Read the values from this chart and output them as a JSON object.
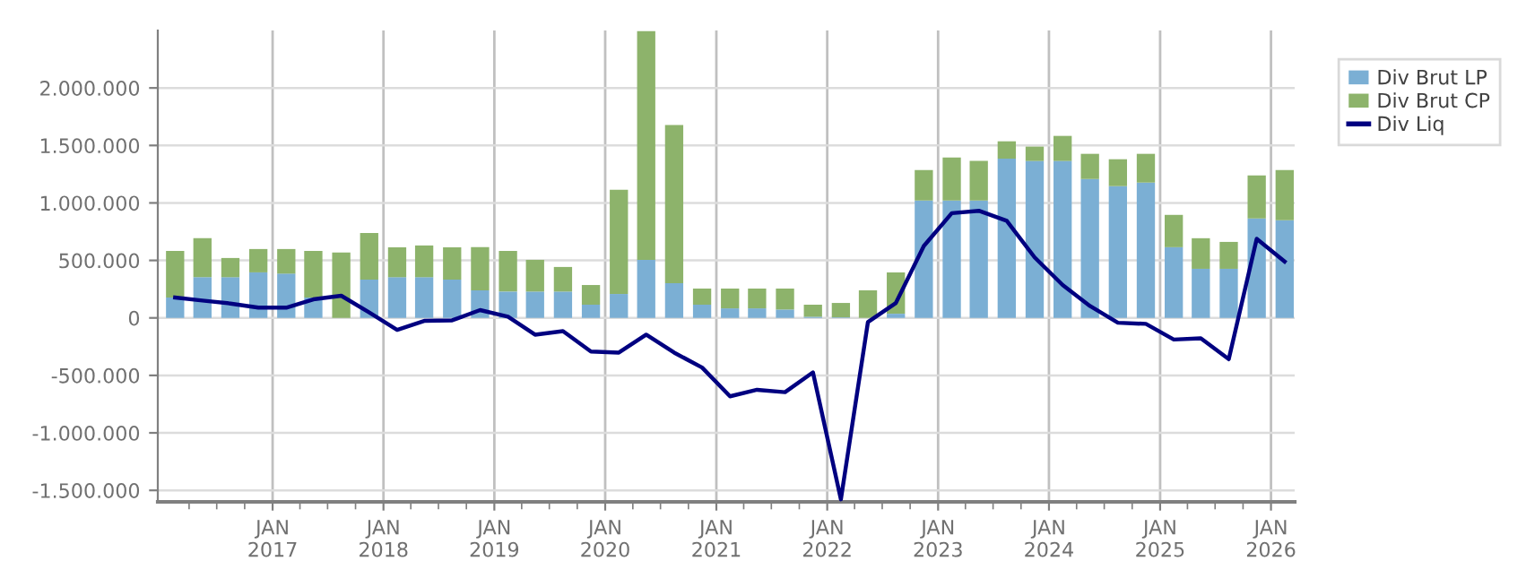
{
  "chart_data": {
    "type": "bar",
    "stacked": true,
    "x": [
      "2016-02-15",
      "2016-05-15",
      "2016-08-15",
      "2016-11-15",
      "2017-02-15",
      "2017-05-15",
      "2017-08-15",
      "2017-11-15",
      "2018-02-15",
      "2018-05-15",
      "2018-08-15",
      "2018-11-15",
      "2019-02-15",
      "2019-05-15",
      "2019-08-15",
      "2019-11-15",
      "2020-02-15",
      "2020-05-15",
      "2020-08-15",
      "2020-11-15",
      "2021-02-15",
      "2021-05-15",
      "2021-08-15",
      "2021-11-15",
      "2022-02-15",
      "2022-05-15",
      "2022-08-15",
      "2022-11-15",
      "2023-02-15",
      "2023-05-15",
      "2023-08-15",
      "2023-11-15",
      "2024-02-15",
      "2024-05-15",
      "2024-08-15",
      "2024-11-15",
      "2025-02-15",
      "2025-05-15",
      "2025-08-15",
      "2025-11-15",
      "2026-02-15"
    ],
    "series": [
      {
        "name": "Div Brut LP",
        "color": "#7bafd4",
        "values": [
          177000,
          354000,
          354000,
          396000,
          385000,
          177000,
          0,
          333000,
          354000,
          354000,
          333000,
          240000,
          229000,
          229000,
          229000,
          115000,
          208000,
          505000,
          302000,
          115000,
          83000,
          83000,
          73000,
          10000,
          5000,
          0,
          36000,
          1021000,
          1021000,
          1021000,
          1385000,
          1365000,
          1365000,
          1208000,
          1146000,
          1177000,
          615000,
          427000,
          427000,
          865000,
          849000
        ]
      },
      {
        "name": "Div Brut CP",
        "color": "#8db36b",
        "values": [
          406000,
          339000,
          167000,
          203000,
          214000,
          406000,
          568000,
          406000,
          260000,
          276000,
          281000,
          375000,
          354000,
          276000,
          214000,
          171000,
          906000,
          1990000,
          1375000,
          140000,
          172000,
          172000,
          182000,
          105000,
          125000,
          240000,
          360000,
          265000,
          375000,
          344000,
          151000,
          125000,
          218000,
          219000,
          234000,
          250000,
          281000,
          266000,
          234000,
          375000,
          437000
        ]
      },
      {
        "name": "Div Liq",
        "type": "line",
        "color": "#000080",
        "values": [
          177000,
          151000,
          125000,
          89000,
          89000,
          161000,
          193000,
          47000,
          -104000,
          -26000,
          -21000,
          68000,
          10000,
          -146000,
          -115000,
          -292000,
          -302000,
          -146000,
          -302000,
          -432000,
          -682000,
          -625000,
          -646000,
          -474000,
          -1578000,
          -36000,
          130000,
          625000,
          911000,
          932000,
          844000,
          526000,
          286000,
          104000,
          -42000,
          -52000,
          -188000,
          -177000,
          -359000,
          688000,
          490000
        ]
      }
    ],
    "ylim": [
      -1600000,
      2500000
    ],
    "yticks": [
      {
        "value": -1500000,
        "label": "-1.500.000"
      },
      {
        "value": -1000000,
        "label": "-1.000.000"
      },
      {
        "value": -500000,
        "label": "-500.000"
      },
      0,
      {
        "value": 500000,
        "label": "500.000"
      },
      {
        "value": 1000000,
        "label": "1.000.000"
      },
      {
        "value": 1500000,
        "label": "1.500.000"
      },
      {
        "value": 2000000,
        "label": "2.000.000"
      }
    ],
    "xlim": [
      "2015-12-20",
      "2026-03-20"
    ],
    "xticks": [
      {
        "value": "2016-04-01",
        "label": null
      },
      {
        "value": "2016-07-01",
        "label": null
      },
      {
        "value": "2016-10-01",
        "label": null
      },
      {
        "value": "2017-01-01",
        "label": "JAN\n2017"
      },
      {
        "value": "2017-04-01",
        "label": null
      },
      {
        "value": "2017-07-01",
        "label": null
      },
      {
        "value": "2017-10-01",
        "label": null
      },
      {
        "value": "2018-01-01",
        "label": "JAN\n2018"
      },
      {
        "value": "2018-04-01",
        "label": null
      },
      {
        "value": "2018-07-01",
        "label": null
      },
      {
        "value": "2018-10-01",
        "label": null
      },
      {
        "value": "2019-01-01",
        "label": "JAN\n2019"
      },
      {
        "value": "2019-04-01",
        "label": null
      },
      {
        "value": "2019-07-01",
        "label": null
      },
      {
        "value": "2019-10-01",
        "label": null
      },
      {
        "value": "2020-01-01",
        "label": "JAN\n2020"
      },
      {
        "value": "2020-04-01",
        "label": null
      },
      {
        "value": "2020-07-01",
        "label": null
      },
      {
        "value": "2020-10-01",
        "label": null
      },
      {
        "value": "2021-01-01",
        "label": "JAN\n2021"
      },
      {
        "value": "2021-04-01",
        "label": null
      },
      {
        "value": "2021-07-01",
        "label": null
      },
      {
        "value": "2021-10-01",
        "label": null
      },
      {
        "value": "2022-01-01",
        "label": "JAN\n2022"
      },
      {
        "value": "2022-04-01",
        "label": null
      },
      {
        "value": "2022-07-01",
        "label": null
      },
      {
        "value": "2022-10-01",
        "label": null
      },
      {
        "value": "2023-01-01",
        "label": "JAN\n2023"
      },
      {
        "value": "2023-04-01",
        "label": null
      },
      {
        "value": "2023-07-01",
        "label": null
      },
      {
        "value": "2023-10-01",
        "label": null
      },
      {
        "value": "2024-01-01",
        "label": "JAN\n2024"
      },
      {
        "value": "2024-04-01",
        "label": null
      },
      {
        "value": "2024-07-01",
        "label": null
      },
      {
        "value": "2024-10-01",
        "label": null
      },
      {
        "value": "2025-01-01",
        "label": "JAN\n2025"
      },
      {
        "value": "2025-04-01",
        "label": null
      },
      {
        "value": "2025-07-01",
        "label": null
      },
      {
        "value": "2025-10-01",
        "label": null
      },
      {
        "value": "2026-01-01",
        "label": "JAN\n2026"
      }
    ],
    "grid": true,
    "legend": "right"
  }
}
